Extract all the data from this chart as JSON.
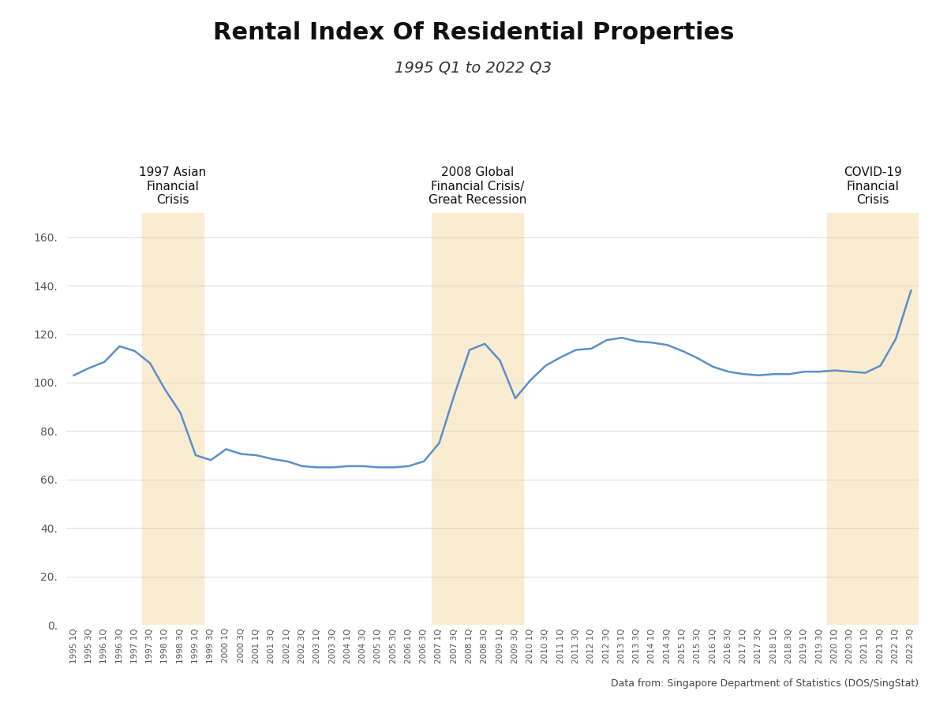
{
  "title": "Rental Index Of Residential Properties",
  "subtitle": "1995 Q1 to 2022 Q3",
  "source": "Data from: Singapore Department of Statistics (DOS/SingStat)",
  "line_color": "#5b8fc9",
  "line_width": 1.8,
  "background_color": "#ffffff",
  "shade_color": "#faecd0",
  "shade_alpha": 1.0,
  "ylim": [
    0,
    170
  ],
  "yticks": [
    0,
    20,
    40,
    60,
    80,
    100,
    120,
    140,
    160
  ],
  "crisis_regions": [
    {
      "label": "1997 Asian\nFinancial\nCrisis",
      "start": "1997 Q3",
      "end": "1999 Q1"
    },
    {
      "label": "2008 Global\nFinancial Crisis/\nGreat Recession",
      "start": "2007 Q1",
      "end": "2009 Q3"
    },
    {
      "label": "COVID-19\nFinancial\nCrisis",
      "start": "2020 Q1",
      "end": "2022 Q3"
    }
  ],
  "quarters": [
    "1995 Q1",
    "1995 Q3",
    "1996 Q1",
    "1996 Q3",
    "1997 Q1",
    "1997 Q3",
    "1998 Q1",
    "1998 Q3",
    "1999 Q1",
    "1999 Q3",
    "2000 Q1",
    "2000 Q3",
    "2001 Q1",
    "2001 Q3",
    "2002 Q1",
    "2002 Q3",
    "2003 Q1",
    "2003 Q3",
    "2004 Q1",
    "2004 Q3",
    "2005 Q1",
    "2005 Q3",
    "2006 Q1",
    "2006 Q3",
    "2007 Q1",
    "2007 Q3",
    "2008 Q1",
    "2008 Q3",
    "2009 Q1",
    "2009 Q3",
    "2010 Q1",
    "2010 Q3",
    "2011 Q1",
    "2011 Q3",
    "2012 Q1",
    "2012 Q3",
    "2013 Q1",
    "2013 Q3",
    "2014 Q1",
    "2014 Q3",
    "2015 Q1",
    "2015 Q3",
    "2016 Q1",
    "2016 Q3",
    "2017 Q1",
    "2017 Q3",
    "2018 Q1",
    "2018 Q3",
    "2019 Q1",
    "2019 Q3",
    "2020 Q1",
    "2020 Q3",
    "2021 Q1",
    "2021 Q3",
    "2022 Q1",
    "2022 Q3"
  ],
  "values": [
    103.0,
    106.0,
    108.5,
    115.0,
    113.0,
    108.0,
    97.0,
    87.5,
    70.0,
    68.0,
    72.5,
    70.5,
    70.0,
    68.5,
    67.5,
    65.5,
    65.0,
    65.0,
    65.5,
    65.5,
    65.0,
    65.0,
    65.5,
    67.5,
    75.0,
    95.0,
    113.5,
    116.0,
    109.0,
    93.5,
    101.0,
    107.0,
    110.5,
    113.5,
    114.0,
    117.5,
    118.5,
    117.0,
    116.5,
    115.5,
    113.0,
    110.0,
    106.5,
    104.5,
    103.5,
    103.0,
    103.5,
    103.5,
    104.5,
    104.5,
    105.0,
    104.5,
    104.0,
    107.0,
    118.0,
    138.0
  ],
  "xtick_labels": [
    "1995 1Q",
    "1995 3Q",
    "1996 1Q",
    "1996 3Q",
    "1997 1Q",
    "1997 3Q",
    "1998 1Q",
    "1998 3Q",
    "1999 1Q",
    "1999 3Q",
    "2000 1Q",
    "2000 3Q",
    "2001 1Q",
    "2001 3Q",
    "2002 1Q",
    "2002 3Q",
    "2003 1Q",
    "2003 3Q",
    "2004 1Q",
    "2004 3Q",
    "2005 1Q",
    "2005 3Q",
    "2006 1Q",
    "2006 3Q",
    "2007 1Q",
    "2007 3Q",
    "2008 1Q",
    "2008 3Q",
    "2009 1Q",
    "2009 3Q",
    "2010 1Q",
    "2010 3Q",
    "2011 1Q",
    "2011 3Q",
    "2012 1Q",
    "2012 3Q",
    "2013 1Q",
    "2013 3Q",
    "2014 1Q",
    "2014 3Q",
    "2015 1Q",
    "2015 3Q",
    "2016 1Q",
    "2016 3Q",
    "2017 1Q",
    "2017 3Q",
    "2018 1Q",
    "2018 3Q",
    "2019 1Q",
    "2019 3Q",
    "2020 1Q",
    "2020 3Q",
    "2021 1Q",
    "2021 3Q",
    "2022 1Q",
    "2022 3Q"
  ],
  "title_fontsize": 22,
  "subtitle_fontsize": 14,
  "crisis_label_fontsize": 11,
  "source_fontsize": 9,
  "ytick_fontsize": 10,
  "xtick_fontsize": 7.5
}
